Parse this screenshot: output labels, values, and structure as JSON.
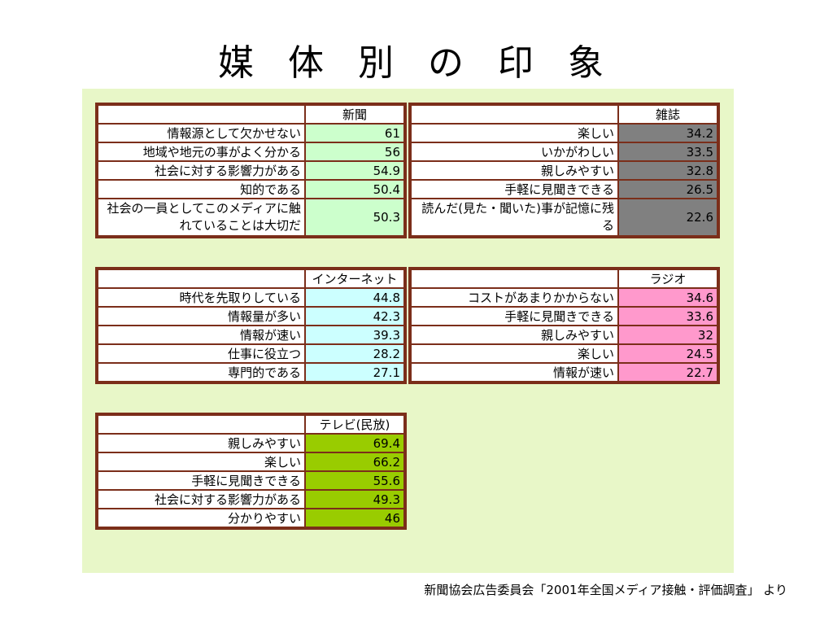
{
  "title": "媒 体 別 の 印 象",
  "source": "新聞協会広告委員会「2001年全国メディア接触・評価調査」 より",
  "colors": {
    "panel_bg": "#e8f7c8",
    "border": "#7b2e1a",
    "newspaper": "#ccffcc",
    "magazine": "#808080",
    "internet": "#ccffff",
    "radio": "#ff99cc",
    "tv": "#99cc00"
  },
  "tables": {
    "newspaper": {
      "header": "新聞",
      "rows": [
        {
          "label": "情報源として欠かせない",
          "value": "61"
        },
        {
          "label": "地域や地元の事がよく分かる",
          "value": "56"
        },
        {
          "label": "社会に対する影響力がある",
          "value": "54.9"
        },
        {
          "label": "知的である",
          "value": "50.4"
        },
        {
          "label": "社会の一員としてこのメディアに触れていることは大切だ",
          "value": "50.3"
        }
      ]
    },
    "magazine": {
      "header": "雑誌",
      "rows": [
        {
          "label": "楽しい",
          "value": "34.2"
        },
        {
          "label": "いかがわしい",
          "value": "33.5"
        },
        {
          "label": "親しみやすい",
          "value": "32.8"
        },
        {
          "label": "手軽に見聞きできる",
          "value": "26.5"
        },
        {
          "label": "読んだ(見た・聞いた)事が記憶に残る",
          "value": "22.6"
        }
      ]
    },
    "internet": {
      "header": "インターネット",
      "rows": [
        {
          "label": "時代を先取りしている",
          "value": "44.8"
        },
        {
          "label": "情報量が多い",
          "value": "42.3"
        },
        {
          "label": "情報が速い",
          "value": "39.3"
        },
        {
          "label": "仕事に役立つ",
          "value": "28.2"
        },
        {
          "label": "専門的である",
          "value": "27.1"
        }
      ]
    },
    "radio": {
      "header": "ラジオ",
      "rows": [
        {
          "label": "コストがあまりかからない",
          "value": "34.6"
        },
        {
          "label": "手軽に見聞きできる",
          "value": "33.6"
        },
        {
          "label": "親しみやすい",
          "value": "32"
        },
        {
          "label": "楽しい",
          "value": "24.5"
        },
        {
          "label": "情報が速い",
          "value": "22.7"
        }
      ]
    },
    "tv": {
      "header": "テレビ(民放)",
      "rows": [
        {
          "label": "親しみやすい",
          "value": "69.4"
        },
        {
          "label": "楽しい",
          "value": "66.2"
        },
        {
          "label": "手軽に見聞きできる",
          "value": "55.6"
        },
        {
          "label": "社会に対する影響力がある",
          "value": "49.3"
        },
        {
          "label": "分かりやすい",
          "value": "46"
        }
      ]
    }
  }
}
